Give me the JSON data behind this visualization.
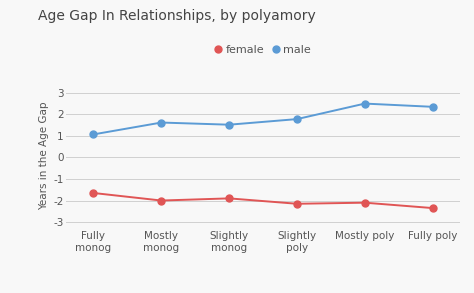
{
  "title": "Age Gap In Relationships, by polyamory",
  "categories": [
    "Fully\nmonog",
    "Mostly\nmonog",
    "Slightly\nmonog",
    "Slightly\npoly",
    "Mostly poly",
    "Fully poly"
  ],
  "female_values": [
    -1.65,
    -2.0,
    -1.9,
    -2.15,
    -2.1,
    -2.35
  ],
  "male_values": [
    1.07,
    1.62,
    1.52,
    1.78,
    2.5,
    2.35
  ],
  "female_color": "#e05555",
  "male_color": "#5b9bd5",
  "ylabel": "Years in the Age Gap",
  "ylim": [
    -3.3,
    3.5
  ],
  "yticks": [
    -3,
    -2,
    -1,
    0,
    1,
    2,
    3
  ],
  "background_color": "#f8f8f8",
  "title_fontsize": 10,
  "axis_fontsize": 7.5,
  "tick_fontsize": 7.5,
  "legend_fontsize": 8,
  "marker_size": 5,
  "line_width": 1.4
}
